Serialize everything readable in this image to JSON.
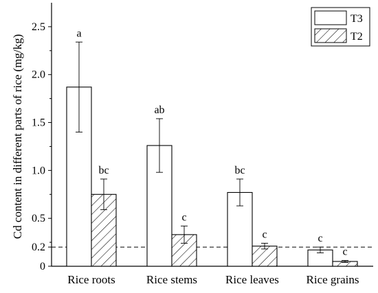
{
  "chart_data": {
    "type": "bar",
    "title": "",
    "xlabel": "",
    "ylabel": "Cd content in different parts of rice (mg/kg)",
    "ylim": [
      0,
      2.75
    ],
    "yticks": [
      "0",
      "0.2",
      "0.5",
      "1.0",
      "1.5",
      "2.0",
      "2.5"
    ],
    "ytick_values": [
      0,
      0.2,
      0.5,
      1.0,
      1.5,
      2.0,
      2.5
    ],
    "categories": [
      "Rice roots",
      "Rice stems",
      "Rice leaves",
      "Rice grains"
    ],
    "series": [
      {
        "name": "T3",
        "pattern": "open",
        "values": [
          1.87,
          1.26,
          0.77,
          0.17
        ],
        "errors": [
          0.47,
          0.28,
          0.14,
          0.03
        ],
        "labels": [
          "a",
          "ab",
          "bc",
          "c"
        ]
      },
      {
        "name": "T2",
        "pattern": "hatched",
        "values": [
          0.75,
          0.33,
          0.21,
          0.05
        ],
        "errors": [
          0.16,
          0.09,
          0.03,
          0.01
        ],
        "labels": [
          "bc",
          "c",
          "c",
          "c"
        ]
      }
    ],
    "reference_line": {
      "y": 0.2,
      "style": "dashed"
    },
    "legend": {
      "placement": "top-right",
      "entries": [
        "T3",
        "T2"
      ]
    },
    "grid": false,
    "colors": {
      "bar_stroke": "#000000",
      "bar_fill": "#ffffff",
      "hatch": "#000000"
    }
  }
}
